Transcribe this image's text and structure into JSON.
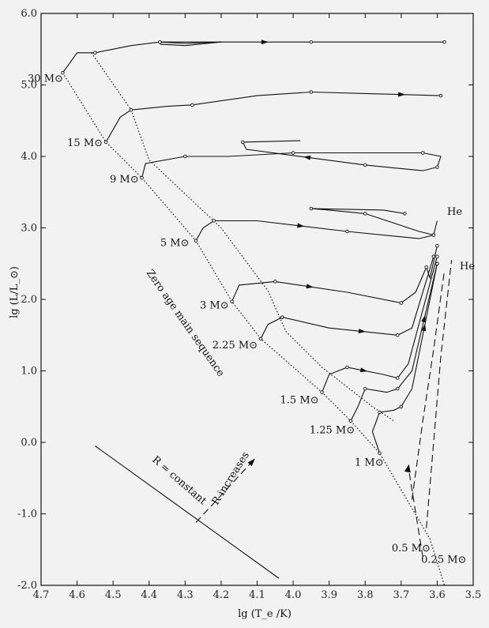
{
  "chart_data": {
    "type": "line",
    "title": "",
    "xlabel": "lg (T_e /K)",
    "ylabel": "lg (L/L_⊙)",
    "xlim": [
      4.7,
      3.5
    ],
    "ylim": [
      -2.0,
      6.0
    ],
    "x_ticks": [
      "4.7",
      "4.6",
      "4.5",
      "4.4",
      "4.3",
      "4.2",
      "4.1",
      "4.0",
      "3.9",
      "3.8",
      "3.7",
      "3.6",
      "3.5"
    ],
    "y_ticks": [
      "-2.0",
      "-1.0",
      "0.0",
      "1.0",
      "2.0",
      "3.0",
      "4.0",
      "5.0",
      "6.0"
    ],
    "mass_labels": [
      {
        "text": "30 M⊙",
        "x": 4.63,
        "y": 5.1
      },
      {
        "text": "15 M⊙",
        "x": 4.52,
        "y": 4.2
      },
      {
        "text": "9 M⊙",
        "x": 4.42,
        "y": 3.69
      },
      {
        "text": "5 M⊙",
        "x": 4.28,
        "y": 2.8
      },
      {
        "text": "3 M⊙",
        "x": 4.17,
        "y": 1.93
      },
      {
        "text": "2.25 M⊙",
        "x": 4.09,
        "y": 1.37
      },
      {
        "text": "1.5 M⊙",
        "x": 3.92,
        "y": 0.6
      },
      {
        "text": "1.25 M⊙",
        "x": 3.82,
        "y": 0.18
      },
      {
        "text": "1 M⊙",
        "x": 3.74,
        "y": -0.27
      },
      {
        "text": "0.5 M⊙",
        "x": 3.61,
        "y": -1.47
      },
      {
        "text": "0.25 M⊙",
        "x": 3.51,
        "y": -1.63
      }
    ],
    "annotations": {
      "zams": "Zero age main sequence",
      "r_constant": "R = constant",
      "r_increases": "R increases",
      "he1": "He",
      "he2": "He"
    },
    "zams_points": [
      [
        4.64,
        5.17
      ],
      [
        4.52,
        4.2
      ],
      [
        4.42,
        3.7
      ],
      [
        4.27,
        2.82
      ],
      [
        4.17,
        1.97
      ],
      [
        4.09,
        1.45
      ],
      [
        3.92,
        0.7
      ],
      [
        3.84,
        0.3
      ],
      [
        3.76,
        -0.15
      ],
      [
        3.62,
        -1.35
      ],
      [
        3.58,
        -2.0
      ]
    ],
    "tams_points": [
      [
        4.56,
        5.45
      ],
      [
        4.45,
        4.65
      ],
      [
        4.4,
        3.95
      ],
      [
        4.2,
        3.0
      ],
      [
        4.07,
        2.12
      ],
      [
        4.02,
        1.55
      ],
      [
        3.92,
        1.05
      ],
      [
        3.78,
        0.5
      ],
      [
        3.72,
        0.3
      ]
    ],
    "tracks": [
      {
        "mass": "30",
        "points": [
          [
            4.64,
            5.17
          ],
          [
            4.6,
            5.45
          ],
          [
            4.55,
            5.45
          ],
          [
            4.45,
            5.55
          ],
          [
            4.37,
            5.6
          ],
          [
            4.2,
            5.6
          ],
          [
            3.95,
            5.6
          ],
          [
            3.75,
            5.6
          ],
          [
            3.58,
            5.6
          ]
        ],
        "loop": [
          [
            4.37,
            5.6
          ],
          [
            4.3,
            5.58
          ],
          [
            4.2,
            5.6
          ],
          [
            4.3,
            5.55
          ],
          [
            4.37,
            5.57
          ]
        ]
      },
      {
        "mass": "15",
        "points": [
          [
            4.52,
            4.2
          ],
          [
            4.48,
            4.55
          ],
          [
            4.45,
            4.65
          ],
          [
            4.35,
            4.7
          ],
          [
            4.28,
            4.72
          ],
          [
            4.1,
            4.85
          ],
          [
            3.95,
            4.9
          ],
          [
            3.8,
            4.88
          ],
          [
            3.59,
            4.85
          ]
        ]
      },
      {
        "mass": "9",
        "points": [
          [
            4.42,
            3.7
          ],
          [
            4.41,
            3.9
          ],
          [
            4.3,
            4.0
          ],
          [
            4.18,
            4.0
          ],
          [
            4.0,
            4.05
          ],
          [
            3.85,
            4.05
          ],
          [
            3.64,
            4.05
          ],
          [
            3.59,
            4.0
          ],
          [
            3.6,
            3.85
          ],
          [
            3.64,
            3.8
          ],
          [
            3.8,
            3.88
          ],
          [
            4.13,
            4.1
          ],
          [
            4.14,
            4.2
          ],
          [
            3.98,
            4.22
          ]
        ]
      },
      {
        "mass": "5",
        "points": [
          [
            4.27,
            2.82
          ],
          [
            4.25,
            3.0
          ],
          [
            4.22,
            3.1
          ],
          [
            4.1,
            3.1
          ],
          [
            3.85,
            2.95
          ],
          [
            3.65,
            2.85
          ],
          [
            3.61,
            2.9
          ],
          [
            3.6,
            3.1
          ],
          [
            3.61,
            2.9
          ],
          [
            3.65,
            2.95
          ],
          [
            3.8,
            3.2
          ],
          [
            3.9,
            3.25
          ],
          [
            3.95,
            3.27
          ],
          [
            3.75,
            3.25
          ],
          [
            3.69,
            3.2
          ]
        ]
      },
      {
        "mass": "3",
        "points": [
          [
            4.17,
            1.97
          ],
          [
            4.15,
            2.2
          ],
          [
            4.05,
            2.25
          ],
          [
            3.85,
            2.1
          ],
          [
            3.7,
            1.95
          ],
          [
            3.66,
            2.1
          ],
          [
            3.63,
            2.45
          ],
          [
            3.62,
            2.3
          ],
          [
            3.6,
            2.75
          ]
        ]
      },
      {
        "mass": "2.25",
        "points": [
          [
            4.09,
            1.45
          ],
          [
            4.07,
            1.65
          ],
          [
            4.03,
            1.75
          ],
          [
            3.9,
            1.6
          ],
          [
            3.71,
            1.5
          ],
          [
            3.67,
            1.6
          ],
          [
            3.61,
            2.6
          ]
        ]
      },
      {
        "mass": "1.5",
        "points": [
          [
            3.92,
            0.7
          ],
          [
            3.9,
            0.95
          ],
          [
            3.85,
            1.05
          ],
          [
            3.75,
            0.95
          ],
          [
            3.71,
            0.9
          ],
          [
            3.68,
            1.1
          ],
          [
            3.6,
            2.6
          ]
        ]
      },
      {
        "mass": "1.25",
        "points": [
          [
            3.84,
            0.3
          ],
          [
            3.82,
            0.5
          ],
          [
            3.8,
            0.75
          ],
          [
            3.74,
            0.7
          ],
          [
            3.71,
            0.75
          ],
          [
            3.67,
            1.0
          ],
          [
            3.6,
            2.5
          ]
        ]
      },
      {
        "mass": "1",
        "points": [
          [
            3.76,
            -0.15
          ],
          [
            3.78,
            0.15
          ],
          [
            3.76,
            0.42
          ],
          [
            3.72,
            0.45
          ],
          [
            3.7,
            0.5
          ],
          [
            3.67,
            0.75
          ],
          [
            3.6,
            2.5
          ]
        ]
      }
    ],
    "helium_flash_lines": [
      {
        "points": [
          [
            3.67,
            -0.8
          ],
          [
            3.64,
            0.3
          ],
          [
            3.61,
            1.3
          ],
          [
            3.58,
            2.4
          ]
        ]
      },
      {
        "points": [
          [
            3.63,
            -1.2
          ],
          [
            3.61,
            0.0
          ],
          [
            3.59,
            1.2
          ],
          [
            3.56,
            2.55
          ]
        ]
      }
    ],
    "r_constant_line": [
      [
        4.55,
        -0.05
      ],
      [
        4.04,
        -1.9
      ]
    ],
    "r_increases_arrow": [
      [
        4.27,
        -1.12
      ],
      [
        4.11,
        -0.25
      ]
    ],
    "low_mass_arrow": [
      [
        3.64,
        -1.6
      ],
      [
        3.68,
        -0.35
      ]
    ]
  }
}
